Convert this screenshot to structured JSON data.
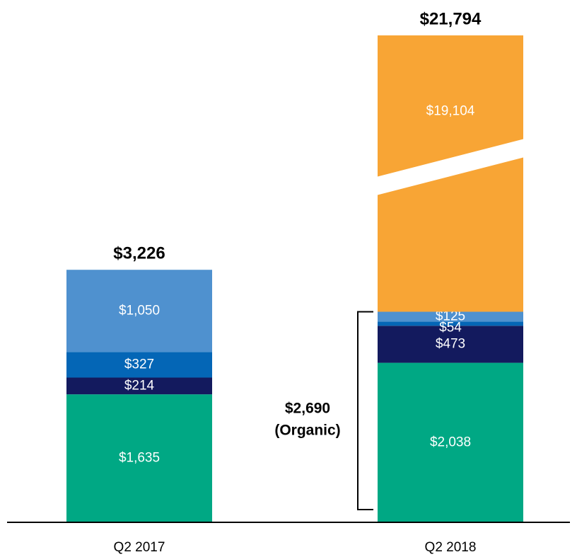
{
  "chart_data": {
    "type": "stacked_bar",
    "axis_break": true,
    "categories": [
      "Q2 2017",
      "Q2 2018"
    ],
    "series": [
      {
        "color": "#00a884",
        "values": [
          1635,
          2038
        ],
        "value_labels": [
          "$1,635",
          "$2,038"
        ]
      },
      {
        "color": "#131a5e",
        "values": [
          214,
          473
        ],
        "value_labels": [
          "$214",
          "$473"
        ]
      },
      {
        "color": "#0466b6",
        "values": [
          327,
          54
        ],
        "value_labels": [
          "$327",
          "$54"
        ]
      },
      {
        "color": "#4f91cf",
        "values": [
          1050,
          125
        ],
        "value_labels": [
          "$1,050",
          "$125"
        ]
      },
      {
        "color": "#f8a535",
        "values": [
          0,
          19104
        ],
        "value_labels": [
          null,
          "$19,104"
        ]
      }
    ],
    "totals": [
      3226,
      21794
    ],
    "total_labels": [
      "$3,226",
      "$21,794"
    ],
    "annotation": {
      "value": 2690,
      "category": 1,
      "text": [
        "$2,690",
        "(Organic)"
      ]
    }
  }
}
